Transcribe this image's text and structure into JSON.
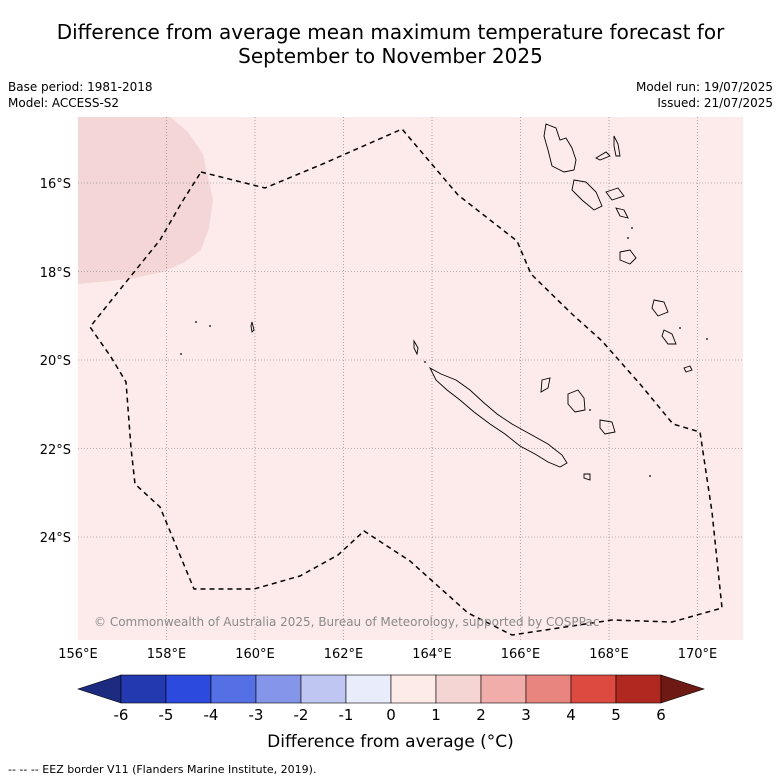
{
  "title_line1": "Difference from average mean maximum temperature forecast for",
  "title_line2": "September to November 2025",
  "meta_left": {
    "base_period": "Base period: 1981-2018",
    "model": "Model: ACCESS-S2"
  },
  "meta_right": {
    "model_run": "Model run: 19/07/2025",
    "issued": "Issued: 21/07/2025"
  },
  "map": {
    "latitude_labels": [
      "16°S",
      "18°S",
      "20°S",
      "22°S",
      "24°S"
    ],
    "longitude_labels": [
      "156°E",
      "158°E",
      "160°E",
      "162°E",
      "164°E",
      "166°E",
      "168°E",
      "170°E"
    ],
    "copyright": "© Commonwealth of Australia 2025, Bureau of Meteorology, supported by COSPPac",
    "background_anomaly_color": "#fcebea",
    "warm_patch_color": "#f4d6d6",
    "eez_line_style": "dashed"
  },
  "colorbar": {
    "label": "Difference from average (°C)",
    "ticks": [
      "-6",
      "-5",
      "-4",
      "-3",
      "-2",
      "-1",
      "0",
      "1",
      "2",
      "3",
      "4",
      "5",
      "6"
    ],
    "colors": [
      "#1c2a80",
      "#2339b0",
      "#2d4adf",
      "#5570e4",
      "#8596ea",
      "#c0c6f2",
      "#e9ecfa",
      "#fdebe8",
      "#f5d5d3",
      "#f0ada9",
      "#e8857e",
      "#dc4a40",
      "#b12820",
      "#6e1a14"
    ]
  },
  "footnote": "-- -- -- EEZ border V11 (Flanders Marine Institute, 2019)."
}
